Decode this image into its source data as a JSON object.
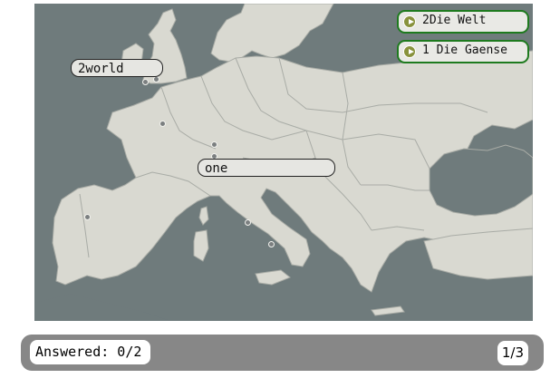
{
  "labels": {
    "world": "2world",
    "one": "one"
  },
  "answers": [
    {
      "text": "2Die Welt"
    },
    {
      "text": "1 Die Gaense"
    }
  ],
  "status": {
    "answered": "Answered: 0/2",
    "page": "1/3"
  },
  "colors": {
    "sea": "#6f7b7c",
    "land": "#d9d9d1",
    "answer_border": "#1e7a1e",
    "status_bar": "#878787",
    "play_icon": "#88923c"
  }
}
